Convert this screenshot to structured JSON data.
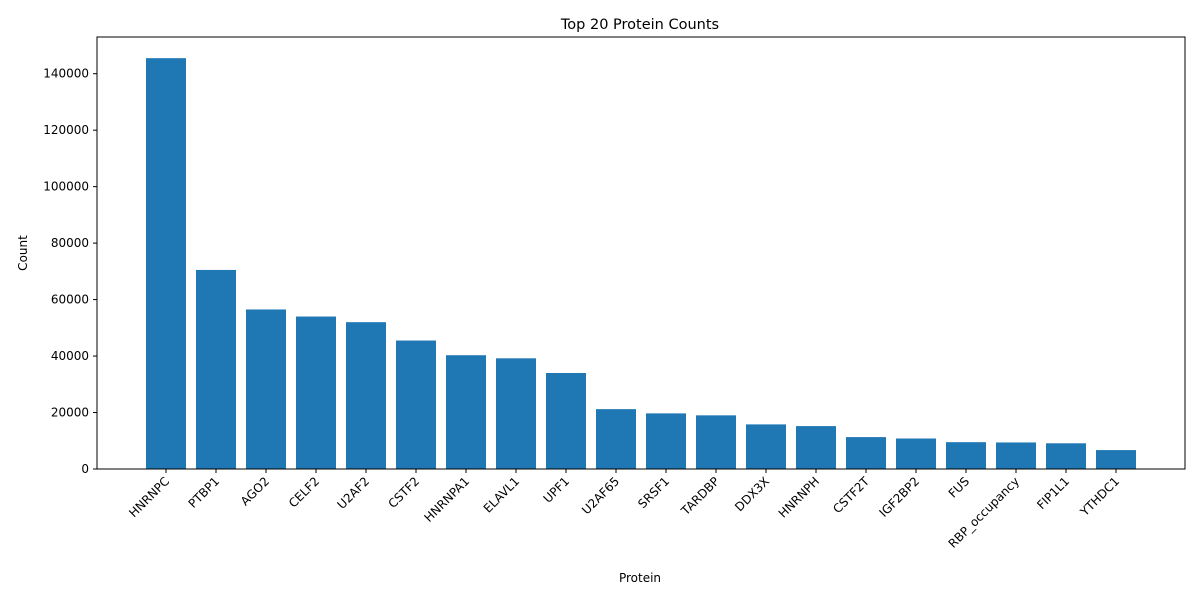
{
  "chart_data": {
    "type": "bar",
    "title": "Top 20 Protein Counts",
    "xlabel": "Protein",
    "ylabel": "Count",
    "ylim": [
      0,
      153000
    ],
    "yticks": [
      0,
      20000,
      40000,
      60000,
      80000,
      100000,
      120000,
      140000
    ],
    "bar_color": "#1f77b4",
    "grid": false,
    "categories": [
      "HNRNPC",
      "PTBP1",
      "AGO2",
      "CELF2",
      "U2AF2",
      "CSTF2",
      "HNRNPA1",
      "ELAVL1",
      "UPF1",
      "U2AF65",
      "SRSF1",
      "TARDBP",
      "DDX3X",
      "HNRNPH",
      "CSTF2T",
      "IGF2BP2",
      "FUS",
      "RBP_occupancy",
      "FIP1L1",
      "YTHDC1"
    ],
    "values": [
      145500,
      70500,
      56500,
      54000,
      52000,
      45500,
      40300,
      39200,
      34000,
      21200,
      19700,
      19000,
      15800,
      15200,
      11300,
      10800,
      9500,
      9400,
      9100,
      6700
    ]
  }
}
